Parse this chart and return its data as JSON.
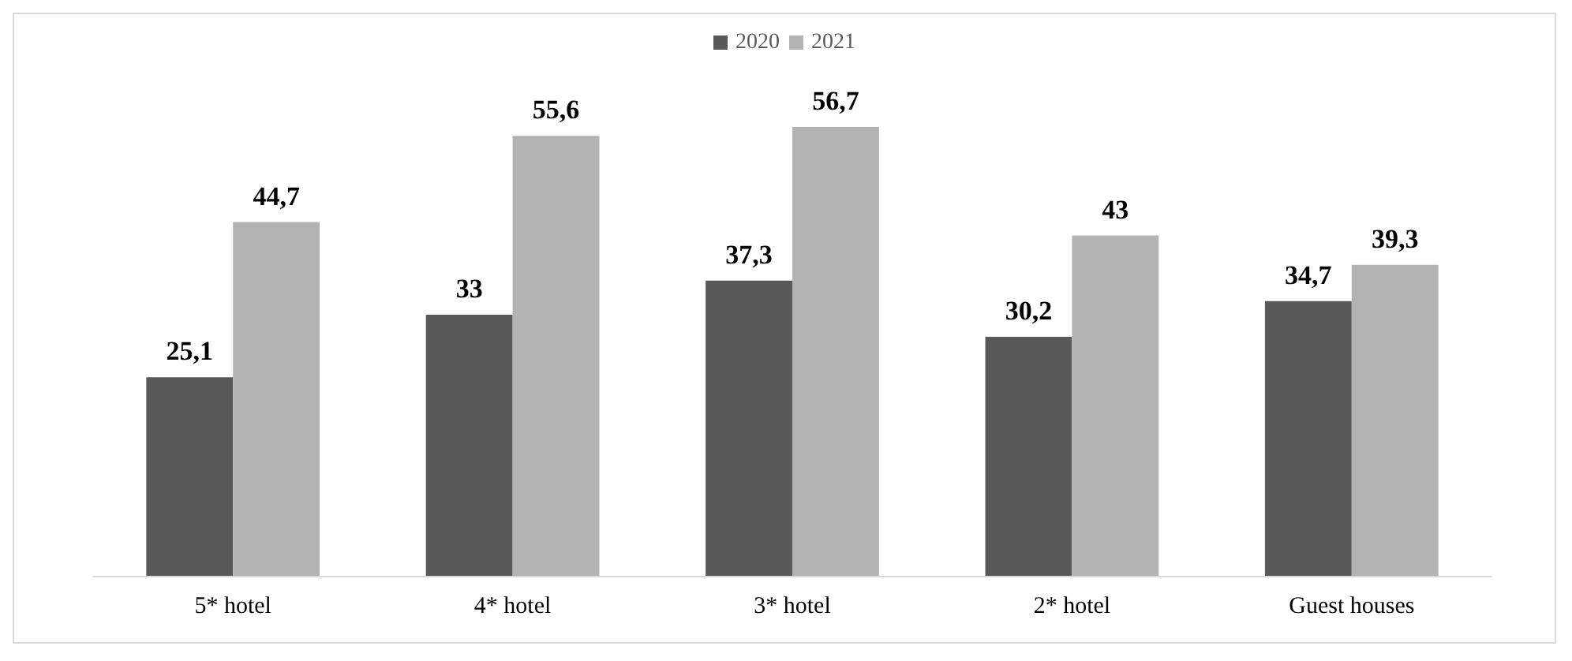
{
  "chart_data": {
    "type": "bar",
    "categories": [
      "5* hotel",
      "4* hotel",
      "3* hotel",
      "2* hotel",
      "Guest houses"
    ],
    "series": [
      {
        "name": "2020",
        "color": "#595959",
        "values": [
          25.1,
          33,
          37.3,
          30.2,
          34.7
        ],
        "value_labels": [
          "25,1",
          "33",
          "37,3",
          "30,2",
          "34,7"
        ]
      },
      {
        "name": "2021",
        "color": "#b3b3b3",
        "values": [
          44.7,
          55.6,
          56.7,
          43,
          39.3
        ],
        "value_labels": [
          "44,7",
          "55,6",
          "56,7",
          "43",
          "39,3"
        ]
      }
    ],
    "legend": "top"
  }
}
